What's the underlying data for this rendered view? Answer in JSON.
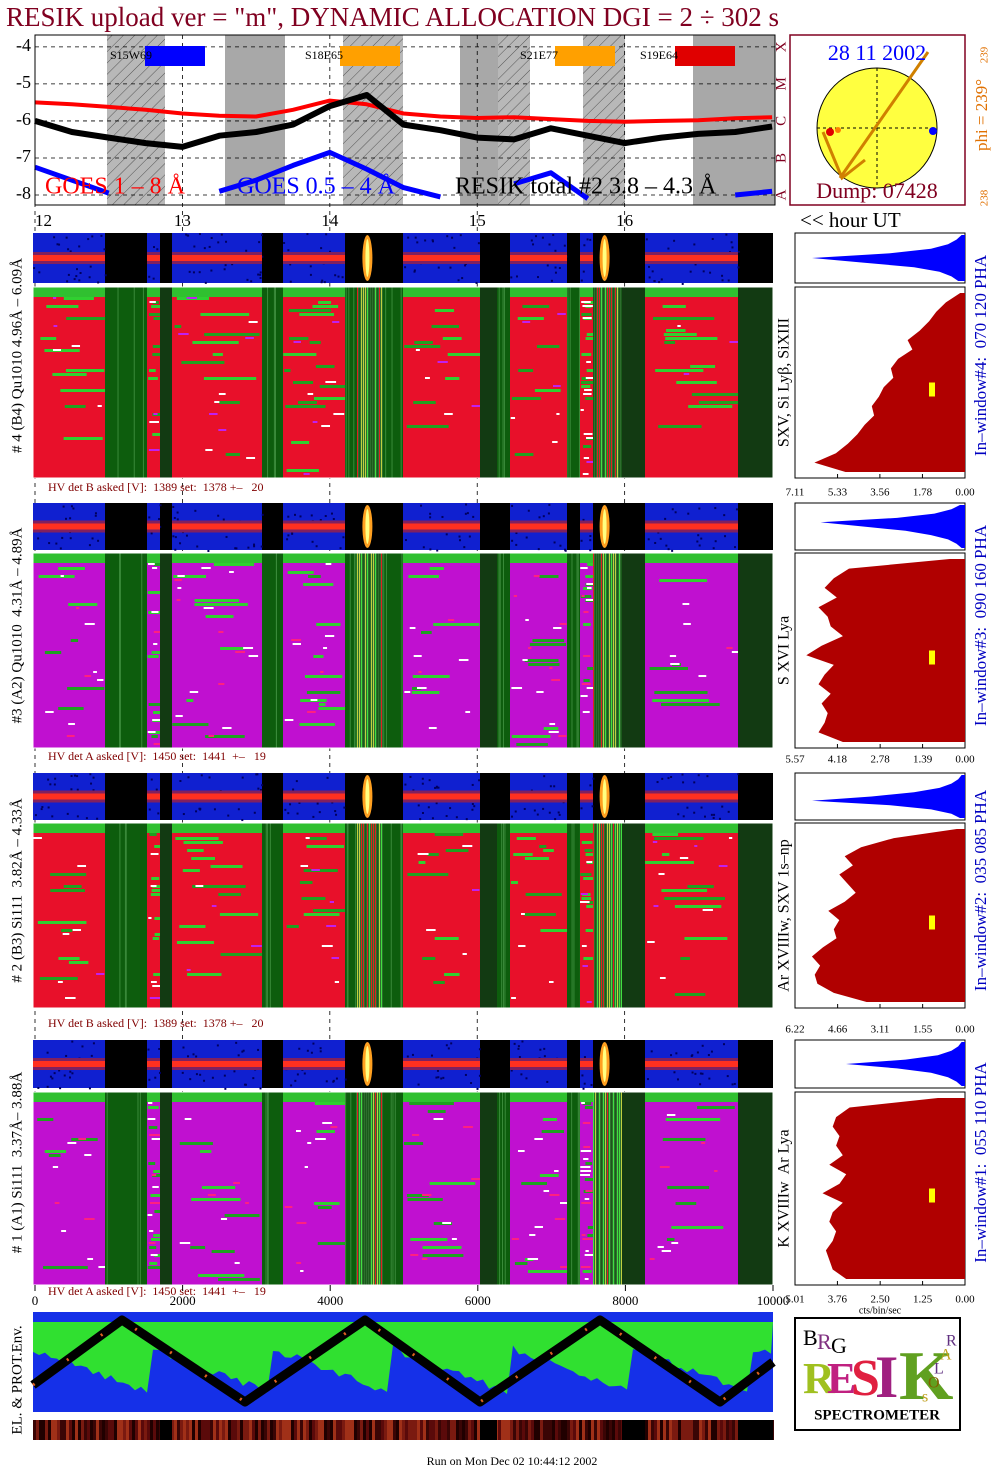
{
  "title": "RESIK upload ver = \"m\", DYNAMIC ALLOCATION  DGI =   2 ÷ 302 s",
  "chart_data": [
    {
      "type": "line",
      "x": [
        12,
        12.25,
        12.5,
        12.75,
        13,
        13.25,
        13.5,
        13.75,
        14,
        14.25,
        14.5,
        14.75,
        15,
        15.25,
        15.5,
        15.75,
        16,
        16.25,
        16.5,
        16.75,
        17
      ],
      "xlim": [
        12,
        17.02
      ],
      "xticks": [
        12,
        13,
        14,
        15,
        16
      ],
      "ylim": [
        -8.27,
        -3.68
      ],
      "yticks": [
        -4,
        -5,
        -6,
        -7,
        -8
      ],
      "y2lim": [
        -8.27,
        -3.68
      ],
      "y2ticks": [
        {
          "value": -8,
          "label": "A"
        },
        {
          "value": -7,
          "label": "B"
        },
        {
          "value": -6,
          "label": "C"
        },
        {
          "value": -5,
          "label": "M"
        },
        {
          "value": -4,
          "label": "X"
        }
      ],
      "grid": true,
      "x_label": "<< hour UT",
      "series": [
        {
          "name": "GOES 1 – 8 Å",
          "color": "#ff0000",
          "values": [
            -5.5,
            -5.55,
            -5.62,
            -5.7,
            -5.8,
            -5.86,
            -5.88,
            -5.7,
            -5.45,
            -5.55,
            -5.8,
            -5.88,
            -5.92,
            -5.9,
            -5.95,
            -6.0,
            -6.02,
            -6.0,
            -5.98,
            -5.93,
            -5.9
          ]
        },
        {
          "name": "GOES 0.5 – 4 Å",
          "color": "#0000ff",
          "values": [
            -7.25,
            -7.6,
            -7.95,
            null,
            null,
            -7.9,
            -7.6,
            -7.2,
            -6.85,
            -7.3,
            -7.8,
            -8.05,
            null,
            -7.7,
            -7.4,
            -8.1,
            null,
            null,
            null,
            -8.0,
            -7.9
          ]
        },
        {
          "name": "RESIK total #2  3.8 – 4.3 Å",
          "color": "#000000",
          "values": [
            -6.0,
            -6.3,
            -6.45,
            -6.6,
            -6.7,
            -6.4,
            -6.3,
            -6.1,
            -5.6,
            -5.3,
            -6.1,
            -6.25,
            -6.45,
            -6.5,
            -6.2,
            -6.4,
            -6.6,
            -6.45,
            -6.35,
            -6.3,
            -6.15
          ]
        }
      ],
      "regions": [
        {
          "label": "S15W69",
          "color": "#0000ff"
        },
        {
          "label": "S18E65",
          "color": "#ffa000"
        },
        {
          "label": "S21E77",
          "color": "#ffa000"
        },
        {
          "label": "S19E64",
          "color": "#e00000"
        }
      ]
    },
    {
      "type": "area",
      "xlim": [
        7.11,
        0
      ],
      "xticks": [
        7.11,
        5.33,
        3.56,
        1.78,
        {
          "value": 0,
          "label": "0.00"
        }
      ],
      "color": "#b00000",
      "annotation": "SXV, Si Lyβ, SiXIII",
      "values": [
        0.2,
        0.8,
        1.2,
        1.5,
        1.9,
        2.4,
        2.2,
        2.8,
        3.1,
        3.0,
        3.4,
        3.6,
        3.9,
        3.8,
        4.2,
        4.5,
        4.9,
        5.4,
        6.3,
        5.0
      ],
      "pha_color": "#0000ff",
      "pha_lim": [
        100,
        0
      ],
      "pha": [
        2,
        5,
        10,
        20,
        45,
        90,
        60,
        30,
        15,
        8,
        4
      ]
    },
    {
      "type": "area",
      "xlim": [
        5.57,
        0
      ],
      "xticks": [
        5.57,
        4.18,
        2.78,
        1.39,
        {
          "value": 0,
          "label": "0.00"
        }
      ],
      "color": "#b00000",
      "annotation": "S XVI Lya",
      "values": [
        0.5,
        3.8,
        4.3,
        4.6,
        4.2,
        4.8,
        4.5,
        4.4,
        4.0,
        4.7,
        5.2,
        4.3,
        4.6,
        4.8,
        4.4,
        4.7,
        4.5,
        4.6,
        4.8,
        4.0
      ],
      "pha_color": "#0000ff",
      "pha_lim": [
        100,
        0
      ],
      "pha": [
        3,
        8,
        18,
        40,
        85,
        60,
        35,
        20,
        10,
        5,
        2
      ]
    },
    {
      "type": "area",
      "xlim": [
        6.22,
        0
      ],
      "xticks": [
        6.22,
        4.66,
        3.11,
        1.55,
        {
          "value": 0,
          "label": "0.00"
        }
      ],
      "color": "#b00000",
      "annotation": "Ar XVIIIw, SXV 1s–np",
      "values": [
        0.3,
        2.6,
        3.8,
        4.4,
        4.1,
        4.6,
        4.3,
        4.0,
        4.4,
        5.0,
        4.6,
        4.8,
        4.7,
        5.2,
        5.6,
        5.3,
        5.5,
        5.4,
        4.8,
        3.6
      ],
      "pha_color": "#0000ff",
      "pha_lim": [
        100,
        0
      ],
      "pha": [
        2,
        4,
        8,
        15,
        30,
        55,
        90,
        45,
        20,
        8,
        3
      ]
    },
    {
      "type": "area",
      "xlim": [
        5.01,
        0
      ],
      "xticks": [
        5.01,
        3.76,
        {
          "value": 2.5,
          "label": "2.50"
        },
        1.25,
        {
          "value": 0,
          "label": "0.00"
        }
      ],
      "color": "#b00000",
      "annotation": "K XVIIIw  Ar Lya",
      "x_label": "cts/bin/sec",
      "values": [
        0.8,
        3.4,
        3.8,
        3.9,
        3.7,
        3.8,
        3.6,
        4.0,
        3.5,
        3.7,
        4.2,
        3.6,
        3.9,
        4.0,
        3.8,
        3.9,
        4.1,
        4.0,
        3.9,
        3.5
      ],
      "pha_color": "#0000ff",
      "pha_lim": [
        100,
        0
      ],
      "pha": [
        2,
        4,
        8,
        16,
        35,
        70,
        40,
        20,
        10,
        5,
        2
      ]
    }
  ],
  "channels": [
    {
      "label": "# 4 (B4) Qu1010 4.96Å – 6.09Å",
      "hv": "HV det B asked [V]:  1389 set:  1378 +–   20",
      "window": "In–window#4:  070 120 PHA"
    },
    {
      "label": "#3 (A2) Qu1010  4.31Å – 4.89Å",
      "hv": "HV det A asked [V]:  1450 set:  1441  +–   19",
      "window": "In–window#3:  090 160 PHA"
    },
    {
      "label": "# 2 (B3) Si111  3.82Å – 4.33Å",
      "hv": "HV det B asked [V]:  1389 set:  1378 +–   20",
      "window": "In–window#2:  035 085 PHA"
    },
    {
      "label": "# 1 (A1) Si111  3.37Å– 3.88Å",
      "hv": "HV det A asked [V]:  1450 set:  1441  +–   19",
      "window": "In–window#1:  055 110 PHA"
    }
  ],
  "index_axis": {
    "xlim": [
      0,
      10000
    ],
    "xticks": [
      0,
      2000,
      4000,
      6000,
      8000,
      10000
    ]
  },
  "sun": {
    "date": "28 11 2002",
    "dump": "Dump: 07428",
    "phi": "phi = 239°",
    "phi_top": "239",
    "phi_bottom": "238"
  },
  "env_label": "EL. & PROT.Env.",
  "logo": {
    "top": [
      "B",
      "R",
      "G"
    ],
    "name": [
      "R",
      "E",
      "S",
      "I",
      "K"
    ],
    "side": [
      "s",
      "O",
      "L",
      "A",
      "R"
    ],
    "caption": "SPECTROMETER"
  },
  "footer": "Run on Mon Dec 02 10:44:12 2002"
}
